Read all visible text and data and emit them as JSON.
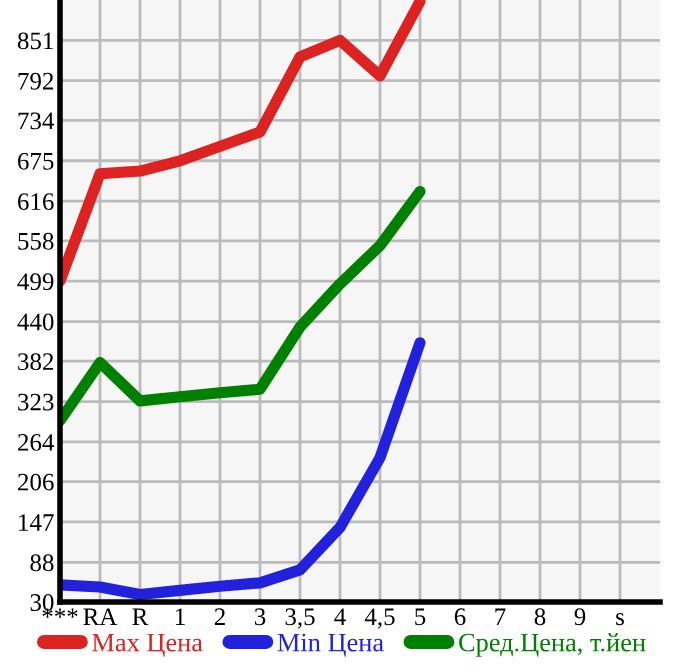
{
  "chart_data": {
    "type": "line",
    "categories": [
      "***",
      "RA",
      "R",
      "1",
      "2",
      "3",
      "3,5",
      "4",
      "4,5",
      "5",
      "6",
      "7",
      "8",
      "9",
      "s"
    ],
    "ylim": [
      30,
      910
    ],
    "yticks": [
      30,
      88,
      147,
      206,
      264,
      323,
      382,
      440,
      499,
      558,
      616,
      675,
      734,
      792,
      851
    ],
    "grid": true,
    "legend": "bottom",
    "marker": "none",
    "line_style": "solid",
    "series": [
      {
        "name": "Max Цена",
        "color": "#dd2222",
        "values": [
          499,
          656,
          660,
          675,
          696,
          717,
          827,
          851,
          799,
          908,
          null,
          null,
          null,
          null,
          null
        ]
      },
      {
        "name": "Min Цена",
        "color": "#2222dd",
        "values": [
          55,
          52,
          41,
          47,
          53,
          58,
          77,
          139,
          241,
          409,
          null,
          null,
          null,
          null,
          null
        ]
      },
      {
        "name": "Сред.Цена, т.йен",
        "color": "#008000",
        "values": [
          295,
          380,
          324,
          330,
          336,
          341,
          432,
          495,
          551,
          630,
          null,
          null,
          null,
          null,
          null
        ]
      }
    ]
  }
}
